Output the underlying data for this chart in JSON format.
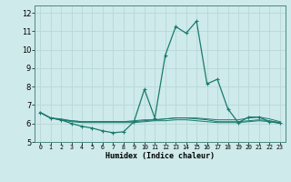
{
  "xlabel": "Humidex (Indice chaleur)",
  "background_color": "#ceeaea",
  "grid_color": "#b8d8d8",
  "line_color": "#1a7a6e",
  "x_values": [
    0,
    1,
    2,
    3,
    4,
    5,
    6,
    7,
    8,
    9,
    10,
    11,
    12,
    13,
    14,
    15,
    16,
    17,
    18,
    19,
    20,
    21,
    22,
    23
  ],
  "series_main": [
    6.6,
    6.3,
    6.2,
    6.0,
    5.85,
    5.75,
    5.6,
    5.5,
    5.55,
    6.1,
    7.85,
    6.3,
    9.7,
    11.25,
    10.9,
    11.55,
    8.15,
    8.4,
    6.8,
    6.05,
    6.35,
    6.35,
    6.1,
    6.05
  ],
  "series_flat1": [
    6.6,
    6.3,
    6.2,
    6.15,
    6.1,
    6.1,
    6.1,
    6.1,
    6.1,
    6.15,
    6.2,
    6.2,
    6.25,
    6.3,
    6.3,
    6.3,
    6.25,
    6.2,
    6.2,
    6.2,
    6.3,
    6.35,
    6.25,
    6.1
  ],
  "series_flat2": [
    6.6,
    6.3,
    6.25,
    6.15,
    6.1,
    6.1,
    6.1,
    6.1,
    6.1,
    6.1,
    6.15,
    6.2,
    6.25,
    6.3,
    6.3,
    6.25,
    6.2,
    6.1,
    6.1,
    6.1,
    6.15,
    6.2,
    6.15,
    6.05
  ],
  "series_flat3": [
    6.6,
    6.3,
    6.2,
    6.1,
    6.05,
    6.05,
    6.05,
    6.05,
    6.05,
    6.05,
    6.1,
    6.15,
    6.15,
    6.2,
    6.2,
    6.15,
    6.1,
    6.05,
    6.05,
    6.05,
    6.1,
    6.15,
    6.1,
    6.0
  ],
  "ylim": [
    5.0,
    12.4
  ],
  "xlim": [
    -0.5,
    23.5
  ],
  "yticks": [
    5,
    6,
    7,
    8,
    9,
    10,
    11,
    12
  ],
  "xtick_labels": [
    "0",
    "1",
    "2",
    "3",
    "4",
    "5",
    "6",
    "7",
    "8",
    "9",
    "10",
    "11",
    "12",
    "13",
    "14",
    "15",
    "16",
    "17",
    "18",
    "19",
    "20",
    "21",
    "22",
    "23"
  ]
}
